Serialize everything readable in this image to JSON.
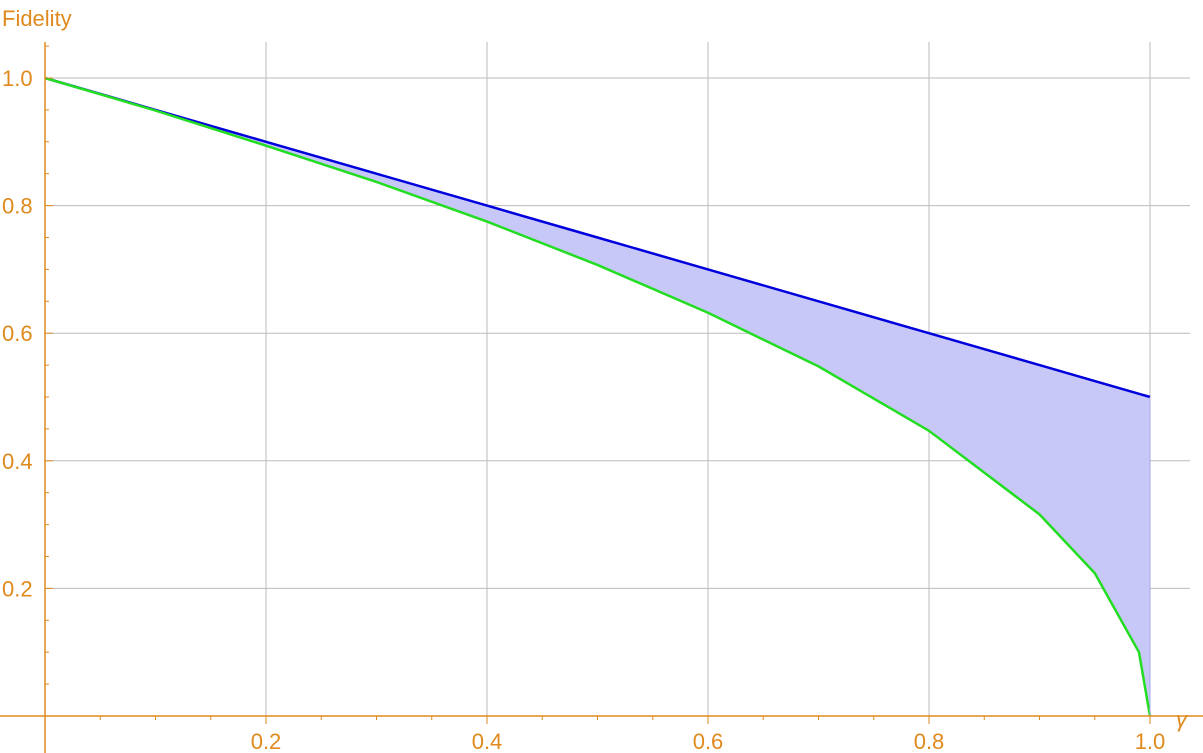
{
  "chart_data": {
    "type": "area",
    "title": "",
    "xlabel": "γ",
    "ylabel": "Fidelity",
    "xlim": [
      0,
      1
    ],
    "ylim": [
      0,
      1.05
    ],
    "x_ticks": [
      "0.2",
      "0.4",
      "0.6",
      "0.8",
      "1.0"
    ],
    "y_ticks": [
      "0.2",
      "0.4",
      "0.6",
      "0.8",
      "1.0"
    ],
    "grid": true,
    "legend": "none",
    "x": [
      0,
      0.1,
      0.2,
      0.3,
      0.4,
      0.5,
      0.6,
      0.7,
      0.8,
      0.9,
      0.95,
      0.99,
      1.0
    ],
    "series": [
      {
        "color": "#0000DD",
        "values": [
          1.0,
          0.95,
          0.9,
          0.85,
          0.8,
          0.75,
          0.7,
          0.65,
          0.6,
          0.55,
          0.525,
          0.505,
          0.5
        ]
      },
      {
        "color": "#22DD22",
        "values": [
          1.0,
          0.949,
          0.894,
          0.837,
          0.775,
          0.707,
          0.632,
          0.548,
          0.447,
          0.316,
          0.224,
          0.1,
          0.0
        ]
      }
    ],
    "fill_between": {
      "color": "#C8C8F8"
    },
    "colors": {
      "axis": "#E08A1E",
      "grid": "#BBBBBB"
    }
  }
}
